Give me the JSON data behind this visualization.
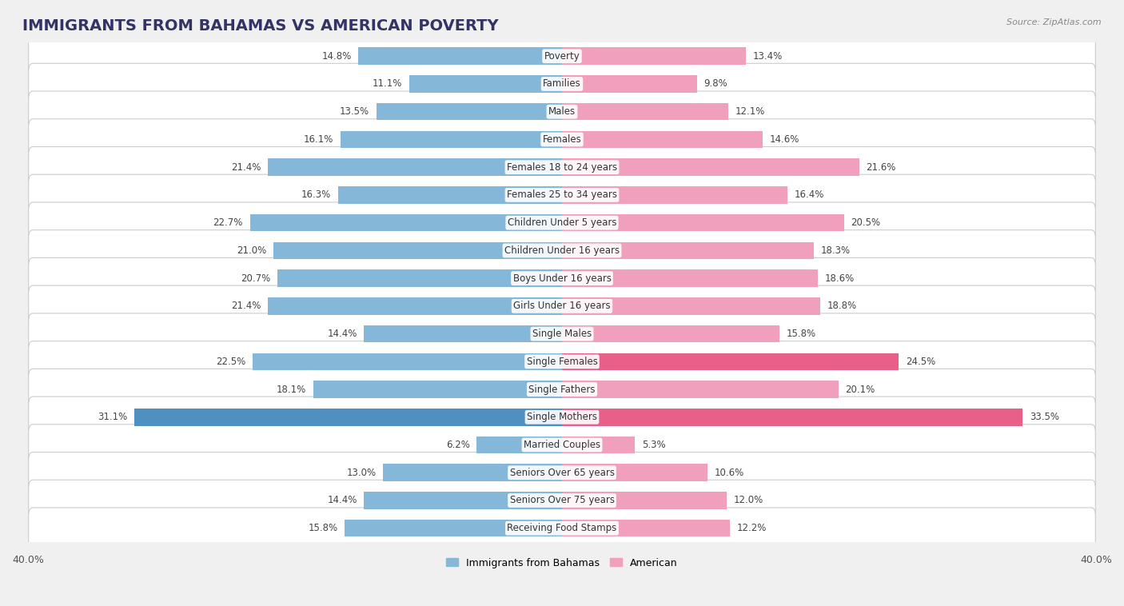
{
  "title": "IMMIGRANTS FROM BAHAMAS VS AMERICAN POVERTY",
  "source": "Source: ZipAtlas.com",
  "categories": [
    "Poverty",
    "Families",
    "Males",
    "Females",
    "Females 18 to 24 years",
    "Females 25 to 34 years",
    "Children Under 5 years",
    "Children Under 16 years",
    "Boys Under 16 years",
    "Girls Under 16 years",
    "Single Males",
    "Single Females",
    "Single Fathers",
    "Single Mothers",
    "Married Couples",
    "Seniors Over 65 years",
    "Seniors Over 75 years",
    "Receiving Food Stamps"
  ],
  "bahamas_values": [
    14.8,
    11.1,
    13.5,
    16.1,
    21.4,
    16.3,
    22.7,
    21.0,
    20.7,
    21.4,
    14.4,
    22.5,
    18.1,
    31.1,
    6.2,
    13.0,
    14.4,
    15.8
  ],
  "american_values": [
    13.4,
    9.8,
    12.1,
    14.6,
    21.6,
    16.4,
    20.5,
    18.3,
    18.6,
    18.8,
    15.8,
    24.5,
    20.1,
    33.5,
    5.3,
    10.6,
    12.0,
    12.2
  ],
  "bahamas_color": "#85b8d8",
  "american_color": "#f0a0bc",
  "american_highlight_color": "#e8608a",
  "bahamas_highlight_color": "#5090c0",
  "background_color": "#f0f0f0",
  "row_bg_color": "#ffffff",
  "row_border_color": "#cccccc",
  "xlim": 40.0,
  "bar_height": 0.62,
  "legend_labels": [
    "Immigrants from Bahamas",
    "American"
  ],
  "title_fontsize": 14,
  "label_fontsize": 8.5,
  "value_fontsize": 8.5,
  "axis_fontsize": 9,
  "highlight_rows": [
    11,
    13
  ],
  "highlight_american": [
    11,
    13
  ],
  "highlight_bahamas": [
    13
  ]
}
